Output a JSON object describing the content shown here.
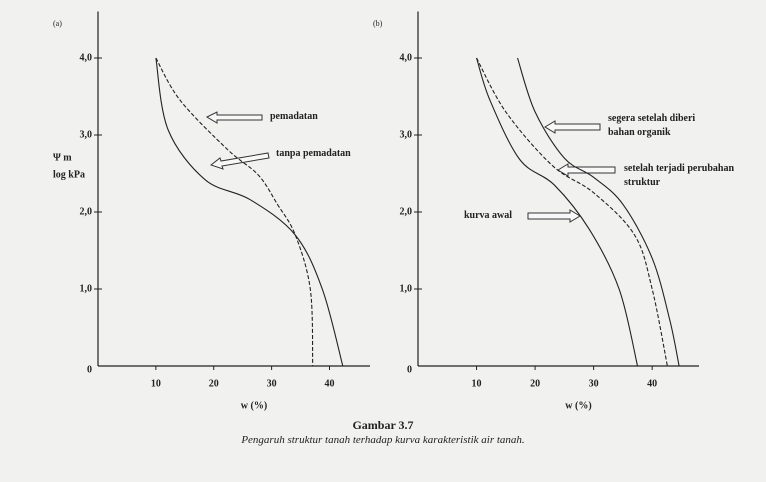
{
  "chart_data": [
    {
      "type": "line",
      "panel": "(a)",
      "xlabel": "w (%)",
      "ylabel": [
        "Ψ m",
        "log kPa"
      ],
      "xlim": [
        0,
        47
      ],
      "ylim": [
        0,
        4.5
      ],
      "xticks": [
        10,
        20,
        30,
        40
      ],
      "yticks": [
        0,
        {
          "value": 1,
          "label": "1,0"
        },
        {
          "value": 2,
          "label": "2,0"
        },
        {
          "value": 3,
          "label": "3,0"
        },
        {
          "value": 4,
          "label": "4,0"
        }
      ],
      "series": [
        {
          "name": "pemadatan",
          "color": "#222222",
          "dashed": true,
          "x": [
            10,
            14.2,
            22.4,
            27.7,
            31,
            34.1,
            36.7,
            37.1
          ],
          "values": [
            4.0,
            3.45,
            2.81,
            2.48,
            2.1,
            1.7,
            0.99,
            0
          ]
        },
        {
          "name": "tanpa pemadatan",
          "color": "#222222",
          "dashed": false,
          "x": [
            10,
            12.1,
            18.5,
            26.3,
            34.1,
            38.8,
            42.3
          ],
          "values": [
            4.0,
            3.07,
            2.42,
            2.16,
            1.7,
            0.99,
            0
          ]
        }
      ]
    },
    {
      "type": "line",
      "panel": "(b)",
      "xlabel": "w (%)",
      "xlim": [
        0,
        48
      ],
      "ylim": [
        0,
        4.5
      ],
      "xticks": [
        10,
        20,
        30,
        40
      ],
      "yticks": [
        0,
        {
          "value": 1,
          "label": "1,0"
        },
        {
          "value": 2,
          "label": "2,0"
        },
        {
          "value": 3,
          "label": "3,0"
        },
        {
          "value": 4,
          "label": "4,0"
        }
      ],
      "series": [
        {
          "name": "segera setelah diberi bahan organik",
          "color": "#222222",
          "dashed": false,
          "x": [
            17,
            20,
            25,
            30,
            35,
            40,
            43,
            44.6
          ],
          "values": [
            4.0,
            3.3,
            2.7,
            2.45,
            2.1,
            1.4,
            0.6,
            0
          ]
        },
        {
          "name": "setelah terjadi perubahan struktur",
          "color": "#222222",
          "dashed": true,
          "x": [
            10,
            15,
            23,
            30,
            37,
            40,
            42.6
          ],
          "values": [
            4.0,
            3.3,
            2.6,
            2.25,
            1.7,
            1.0,
            0
          ]
        },
        {
          "name": "kurva awal",
          "color": "#222222",
          "dashed": false,
          "x": [
            10,
            12.3,
            17.4,
            23.3,
            29.3,
            34.4,
            37.5
          ],
          "values": [
            4.0,
            3.45,
            2.68,
            2.35,
            1.77,
            0.99,
            0
          ]
        }
      ]
    }
  ],
  "caption": {
    "title": "Gambar 3.7",
    "text": "Pengaruh struktur tanah terhadap kurva karakteristik air tanah."
  }
}
